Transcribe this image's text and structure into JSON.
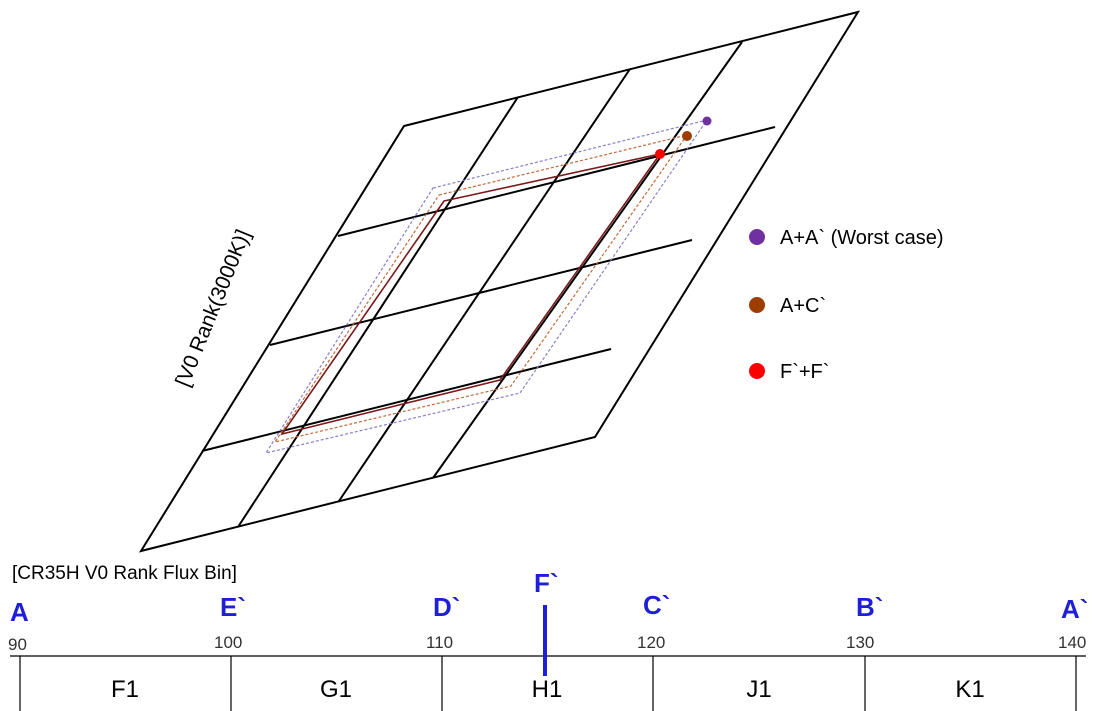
{
  "diagram": {
    "vertical_label": "[V0 Rank(3000K)]",
    "scale_title": "[CR35H V0 Rank Flux Bin]",
    "legend": [
      {
        "label": "A+A` (Worst case)",
        "color": "#7030a0"
      },
      {
        "label": "A+C`",
        "color": "#9c3e00"
      },
      {
        "label": "F`+F`",
        "color": "#ff0000"
      }
    ],
    "scale_ticks": [
      {
        "letter": "A",
        "value": "90"
      },
      {
        "letter": "E`",
        "value": "100"
      },
      {
        "letter": "D`",
        "value": "110"
      },
      {
        "letter": "C`",
        "value": "120"
      },
      {
        "letter": "B`",
        "value": "130"
      },
      {
        "letter": "A`",
        "value": "140"
      }
    ],
    "marker": {
      "letter": "F`",
      "value": 115,
      "color": "#1f1fd6"
    },
    "bins": [
      "F1",
      "G1",
      "H1",
      "J1",
      "K1"
    ],
    "colors": {
      "grid": "#000000",
      "accent_blue": "#1f1fd6",
      "purple": "#7030a0",
      "brown": "#9c3e00",
      "red": "#ff0000"
    }
  }
}
